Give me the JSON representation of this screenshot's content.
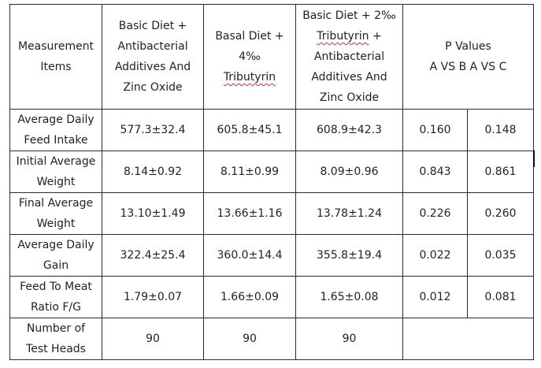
{
  "table": {
    "header": {
      "measurement_items": [
        "Measurement",
        "Items"
      ],
      "col_a": [
        "Basic Diet +",
        "Antibacterial",
        "Additives And",
        "Zinc Oxide"
      ],
      "col_b": {
        "line1": "Basal Diet +",
        "line2": "4‰",
        "line3": "Tributyrin"
      },
      "col_c": {
        "line1": "Basic Diet + 2‰",
        "line2_word": "Tributyrin",
        "line2_rest": " +",
        "line3": "Antibacterial",
        "line4": "Additives And",
        "line5": "Zinc Oxide"
      },
      "p_values": [
        "P Values",
        "A VS B A VS C"
      ]
    },
    "rows": [
      {
        "item": [
          "Average Daily",
          "Feed Intake"
        ],
        "a": "577.3±32.4",
        "b": "605.8±45.1",
        "c": "608.9±42.3",
        "p_ab": "0.160",
        "p_ac": "0.148"
      },
      {
        "item": [
          "Initial Average",
          "Weight"
        ],
        "a": "8.14±0.92",
        "b": "8.11±0.99",
        "c": "8.09±0.96",
        "p_ab": "0.843",
        "p_ac": "0.861"
      },
      {
        "item": [
          "Final Average",
          "Weight"
        ],
        "a": "13.10±1.49",
        "b": "13.66±1.16",
        "c": "13.78±1.24",
        "p_ab": "0.226",
        "p_ac": "0.260"
      },
      {
        "item": [
          "Average Daily",
          "Gain"
        ],
        "a": "322.4±25.4",
        "b": "360.0±14.4",
        "c": "355.8±19.4",
        "p_ab": "0.022",
        "p_ac": "0.035"
      },
      {
        "item": [
          "Feed To Meat",
          "Ratio F/G"
        ],
        "a": "1.79±0.07",
        "b": "1.66±0.09",
        "c": "1.65±0.08",
        "p_ab": "0.012",
        "p_ac": "0.081"
      },
      {
        "item": [
          "Number of",
          "Test Heads"
        ],
        "a": "90",
        "b": "90",
        "c": "90",
        "p": ""
      }
    ]
  }
}
